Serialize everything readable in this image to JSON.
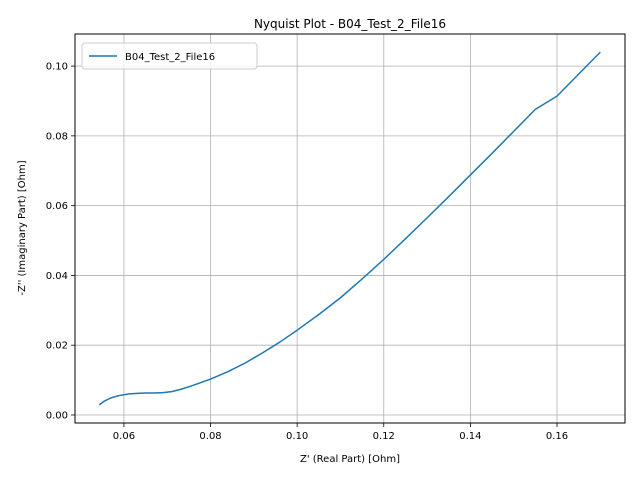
{
  "chart_data": {
    "type": "line",
    "title": "Nyquist Plot - B04_Test_2_File16",
    "xlabel": "Z' (Real Part) [Ohm]",
    "ylabel": "-Z'' (Imaginary Part) [Ohm]",
    "xlim": [
      0.0487,
      0.1757
    ],
    "ylim": [
      -0.0023,
      0.1092
    ],
    "grid": true,
    "legend_position": "top-left",
    "x_ticks": [
      0.06,
      0.08,
      0.1,
      0.12,
      0.14,
      0.16
    ],
    "y_ticks": [
      0.0,
      0.02,
      0.04,
      0.06,
      0.08,
      0.1
    ],
    "x_tick_labels": [
      "0.06",
      "0.08",
      "0.10",
      "0.12",
      "0.14",
      "0.16"
    ],
    "y_tick_labels": [
      "0.00",
      "0.02",
      "0.04",
      "0.06",
      "0.08",
      "0.10"
    ],
    "series": [
      {
        "name": "B04_Test_2_File16",
        "color": "#1f77b4",
        "x": [
          0.0543,
          0.0555,
          0.057,
          0.059,
          0.061,
          0.063,
          0.065,
          0.067,
          0.069,
          0.071,
          0.073,
          0.076,
          0.08,
          0.084,
          0.088,
          0.092,
          0.096,
          0.1,
          0.105,
          0.11,
          0.115,
          0.12,
          0.125,
          0.13,
          0.135,
          0.14,
          0.145,
          0.15,
          0.155,
          0.16,
          0.165,
          0.17
        ],
        "y": [
          0.0029,
          0.004,
          0.0049,
          0.0056,
          0.006,
          0.0062,
          0.0063,
          0.0063,
          0.0064,
          0.0067,
          0.0073,
          0.0085,
          0.0103,
          0.0124,
          0.0149,
          0.0178,
          0.0209,
          0.0243,
          0.0288,
          0.0336,
          0.039,
          0.0446,
          0.0505,
          0.0565,
          0.0626,
          0.0688,
          0.075,
          0.0813,
          0.0876,
          0.0914,
          0.0977,
          0.104
        ]
      }
    ]
  }
}
